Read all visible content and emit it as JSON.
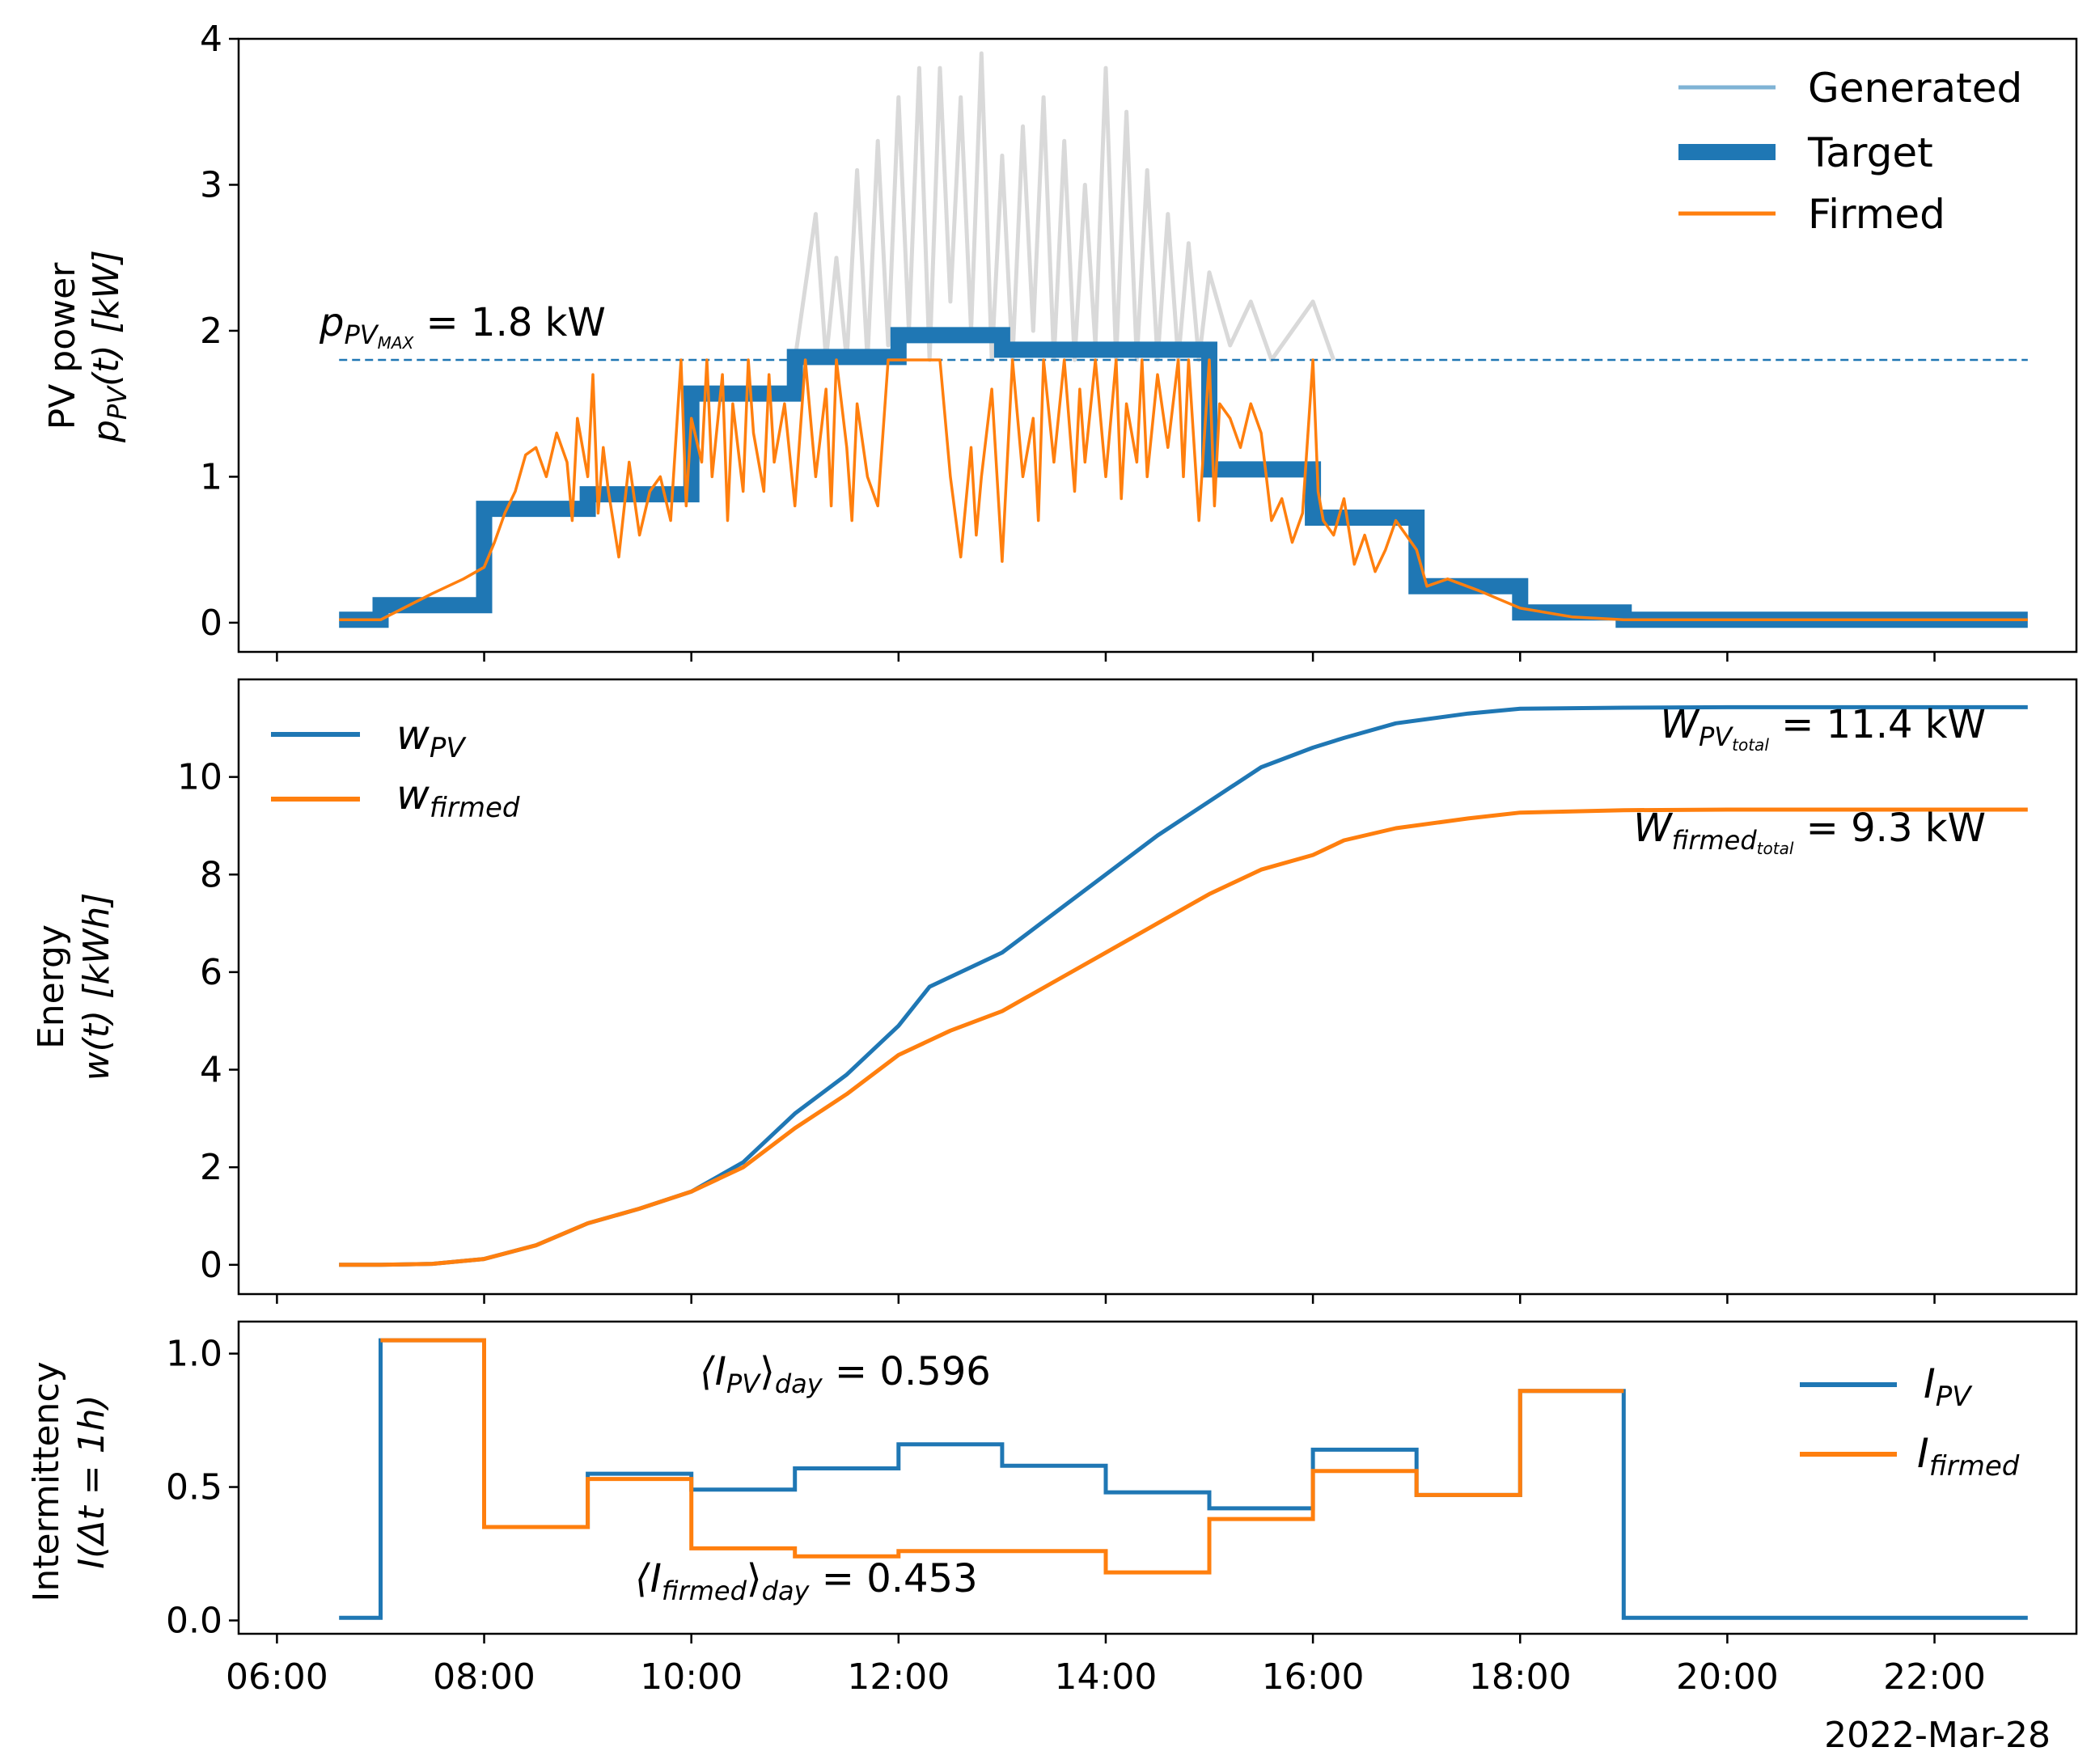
{
  "chart_data": [
    {
      "type": "line",
      "ylabel_line1": "PV power",
      "ylabel_line2": "p",
      "ylabel_line2_sub": "PV",
      "ylabel_line2_rest": "(t) [kW]",
      "ylim": [
        -0.2,
        4.0
      ],
      "yticks": [
        "0",
        "1",
        "2",
        "3",
        "4"
      ],
      "ytick_values": [
        0,
        1,
        2,
        3,
        4
      ],
      "legend": [
        "Generated",
        "Target",
        "Firmed"
      ],
      "legend_placement": "top-right",
      "annotation": {
        "main": "p",
        "sub": "PV",
        "subsub": "MAX",
        "rest": " = 1.8 kW"
      },
      "pmax_value": 1.8,
      "colors": {
        "generated": "#d9d9d9",
        "generated_legend": "#7fb3d5",
        "target": "#1f77b4",
        "firmed": "#ff7f0e",
        "pmax": "#1f77b4"
      },
      "series": [
        {
          "name": "Target",
          "step_x_hours": [
            6.6,
            7.0,
            7.25,
            8.0,
            9.0,
            10.0,
            11.0,
            12.0,
            13.0,
            14.0,
            15.0,
            16.0,
            17.0,
            18.0,
            19.0,
            22.9
          ],
          "values": [
            0.02,
            0.12,
            0.12,
            0.78,
            0.88,
            1.57,
            1.82,
            1.97,
            1.87,
            1.87,
            1.05,
            0.72,
            0.25,
            0.07,
            0.02
          ]
        },
        {
          "name": "Firmed",
          "x_hours": [
            6.6,
            7.0,
            7.5,
            7.8,
            8.0,
            8.1,
            8.2,
            8.3,
            8.4,
            8.5,
            8.6,
            8.7,
            8.8,
            8.85,
            8.9,
            9.0,
            9.05,
            9.1,
            9.15,
            9.2,
            9.3,
            9.4,
            9.5,
            9.6,
            9.7,
            9.8,
            9.9,
            9.95,
            10.0,
            10.1,
            10.15,
            10.2,
            10.3,
            10.35,
            10.4,
            10.5,
            10.55,
            10.6,
            10.7,
            10.75,
            10.8,
            10.9,
            11.0,
            11.1,
            11.2,
            11.3,
            11.35,
            11.4,
            11.5,
            11.55,
            11.6,
            11.7,
            11.8,
            11.9,
            12.0,
            12.1,
            12.2,
            12.3,
            12.4,
            12.5,
            12.6,
            12.7,
            12.75,
            12.8,
            12.9,
            13.0,
            13.1,
            13.2,
            13.3,
            13.35,
            13.4,
            13.5,
            13.6,
            13.7,
            13.75,
            13.8,
            13.9,
            14.0,
            14.1,
            14.15,
            14.2,
            14.3,
            14.35,
            14.4,
            14.5,
            14.6,
            14.7,
            14.75,
            14.8,
            14.9,
            15.0,
            15.05,
            15.1,
            15.2,
            15.3,
            15.4,
            15.5,
            15.6,
            15.7,
            15.8,
            15.9,
            16.0,
            16.05,
            16.1,
            16.2,
            16.3,
            16.4,
            16.5,
            16.6,
            16.7,
            16.8,
            16.9,
            17.0,
            17.1,
            17.3,
            17.6,
            18.0,
            18.5,
            19.0,
            22.9
          ],
          "values": [
            0.02,
            0.02,
            0.2,
            0.3,
            0.38,
            0.55,
            0.75,
            0.9,
            1.15,
            1.2,
            1.0,
            1.3,
            1.1,
            0.7,
            1.4,
            1.0,
            1.7,
            0.75,
            1.2,
            0.9,
            0.45,
            1.1,
            0.6,
            0.9,
            1.0,
            0.7,
            1.8,
            0.8,
            1.4,
            1.1,
            1.8,
            1.0,
            1.7,
            0.7,
            1.5,
            0.9,
            1.8,
            1.3,
            0.9,
            1.7,
            1.1,
            1.5,
            0.8,
            1.8,
            1.0,
            1.6,
            0.8,
            1.8,
            1.2,
            0.7,
            1.5,
            1.0,
            0.8,
            1.8,
            1.8,
            1.8,
            1.8,
            1.8,
            1.8,
            1.0,
            0.45,
            1.2,
            0.6,
            1.0,
            1.6,
            0.42,
            1.8,
            1.0,
            1.4,
            0.7,
            1.8,
            1.1,
            1.8,
            0.9,
            1.6,
            1.1,
            1.8,
            1.0,
            1.8,
            0.85,
            1.5,
            1.1,
            1.8,
            1.0,
            1.7,
            1.2,
            1.8,
            1.0,
            1.8,
            0.7,
            1.8,
            0.8,
            1.5,
            1.4,
            1.2,
            1.5,
            1.3,
            0.7,
            0.85,
            0.55,
            0.75,
            1.8,
            0.9,
            0.7,
            0.6,
            0.85,
            0.4,
            0.6,
            0.35,
            0.5,
            0.7,
            0.6,
            0.5,
            0.25,
            0.3,
            0.22,
            0.1,
            0.04,
            0.02,
            0.02
          ]
        },
        {
          "name": "Generated",
          "x_hours": [
            11.0,
            11.2,
            11.3,
            11.4,
            11.5,
            11.6,
            11.7,
            11.8,
            11.9,
            12.0,
            12.1,
            12.2,
            12.3,
            12.4,
            12.5,
            12.6,
            12.7,
            12.8,
            12.9,
            13.0,
            13.1,
            13.2,
            13.3,
            13.4,
            13.5,
            13.6,
            13.7,
            13.8,
            13.9,
            14.0,
            14.1,
            14.2,
            14.3,
            14.4,
            14.5,
            14.6,
            14.7,
            14.8,
            14.9,
            15.0,
            15.2,
            15.4,
            15.6,
            15.8,
            16.0,
            16.2
          ],
          "values": [
            1.8,
            2.8,
            1.8,
            2.5,
            1.8,
            3.1,
            1.8,
            3.3,
            1.9,
            3.6,
            2.0,
            3.8,
            1.8,
            3.8,
            2.2,
            3.6,
            2.0,
            3.9,
            1.8,
            3.2,
            1.8,
            3.4,
            2.0,
            3.6,
            1.8,
            3.3,
            1.8,
            3.0,
            1.9,
            3.8,
            1.8,
            3.5,
            1.8,
            3.1,
            1.8,
            2.8,
            1.8,
            2.6,
            1.8,
            2.4,
            1.9,
            2.2,
            1.8,
            2.0,
            2.2,
            1.8
          ]
        }
      ]
    },
    {
      "type": "line",
      "ylabel_line1": "Energy",
      "ylabel_line2": "w(t) [kWh]",
      "ylim": [
        -0.6,
        12.0
      ],
      "yticks": [
        "0",
        "2",
        "4",
        "6",
        "8",
        "10"
      ],
      "ytick_values": [
        0,
        2,
        4,
        6,
        8,
        10
      ],
      "legend": [
        {
          "main": "w",
          "sub": "PV"
        },
        {
          "main": "w",
          "sub": "firmed"
        }
      ],
      "legend_placement": "top-left",
      "annotations": [
        {
          "main": "W",
          "sub": "PV",
          "subsub": "total",
          "rest": " = 11.4 kW"
        },
        {
          "main": "W",
          "sub": "firmed",
          "subsub": "total",
          "rest": " = 9.3 kW"
        }
      ],
      "colors": {
        "pv": "#1f77b4",
        "firmed": "#ff7f0e"
      },
      "series": [
        {
          "name": "w_PV",
          "x_hours": [
            6.6,
            7.0,
            7.5,
            8.0,
            8.5,
            9.0,
            9.5,
            10.0,
            10.5,
            11.0,
            11.5,
            12.0,
            12.3,
            12.5,
            13.0,
            13.5,
            14.0,
            14.5,
            15.0,
            15.5,
            16.0,
            16.3,
            16.8,
            17.5,
            18.0,
            19.0,
            20.0,
            21.0,
            22.9
          ],
          "values": [
            0.0,
            0.0,
            0.02,
            0.12,
            0.4,
            0.85,
            1.15,
            1.5,
            2.1,
            3.1,
            3.9,
            4.9,
            5.7,
            5.9,
            6.4,
            7.2,
            8.0,
            8.8,
            9.5,
            10.2,
            10.6,
            10.8,
            11.1,
            11.3,
            11.4,
            11.42,
            11.43,
            11.43,
            11.43
          ]
        },
        {
          "name": "w_firmed",
          "x_hours": [
            6.6,
            7.0,
            7.5,
            8.0,
            8.5,
            9.0,
            9.5,
            10.0,
            10.5,
            11.0,
            11.5,
            12.0,
            12.5,
            13.0,
            13.5,
            14.0,
            14.5,
            15.0,
            15.5,
            16.0,
            16.3,
            16.8,
            17.5,
            18.0,
            19.0,
            20.0,
            21.0,
            22.9
          ],
          "values": [
            0.0,
            0.0,
            0.02,
            0.12,
            0.4,
            0.85,
            1.15,
            1.5,
            2.0,
            2.8,
            3.5,
            4.3,
            4.8,
            5.2,
            5.8,
            6.4,
            7.0,
            7.6,
            8.1,
            8.4,
            8.7,
            8.95,
            9.15,
            9.27,
            9.32,
            9.33,
            9.33,
            9.33
          ]
        }
      ]
    },
    {
      "type": "line",
      "ylabel_line1": "Intermittency",
      "ylabel_line2": "I(Δt = 1h)",
      "ylim": [
        -0.05,
        1.12
      ],
      "yticks": [
        "0.0",
        "0.5",
        "1.0"
      ],
      "ytick_values": [
        0.0,
        0.5,
        1.0
      ],
      "xticks": [
        "06:00",
        "08:00",
        "10:00",
        "12:00",
        "14:00",
        "16:00",
        "18:00",
        "20:00",
        "22:00"
      ],
      "xtick_hours": [
        6,
        8,
        10,
        12,
        14,
        16,
        18,
        20,
        22
      ],
      "xlabel_date": "2022-Mar-28",
      "legend": [
        {
          "main": "I",
          "sub": "PV"
        },
        {
          "main": "I",
          "sub": "firmed"
        }
      ],
      "legend_placement": "right",
      "annotations": [
        {
          "pre": "⟨I",
          "sub": "PV",
          "mid": "⟩",
          "sub2": "day",
          "rest": " = 0.596"
        },
        {
          "pre": "⟨I",
          "sub": "firmed",
          "mid": "⟩",
          "sub2": "day",
          "rest": " = 0.453"
        }
      ],
      "colors": {
        "pv": "#1f77b4",
        "firmed": "#ff7f0e"
      },
      "series": [
        {
          "name": "I_PV",
          "step_x_hours": [
            6.6,
            7.0,
            8.0,
            9.0,
            10.0,
            11.0,
            12.0,
            13.0,
            14.0,
            15.0,
            16.0,
            17.0,
            18.0,
            19.0,
            22.9
          ],
          "values": [
            0.01,
            1.05,
            0.35,
            0.55,
            0.49,
            0.57,
            0.66,
            0.58,
            0.48,
            0.42,
            0.64,
            0.47,
            0.86,
            0.01
          ]
        },
        {
          "name": "I_firmed",
          "step_x_hours": [
            7.0,
            8.0,
            9.0,
            10.0,
            11.0,
            12.0,
            13.0,
            14.0,
            15.0,
            16.0,
            17.0,
            18.0,
            19.0
          ],
          "values": [
            1.05,
            0.35,
            0.53,
            0.27,
            0.24,
            0.26,
            0.26,
            0.18,
            0.38,
            0.56,
            0.47,
            0.86
          ]
        }
      ]
    }
  ]
}
